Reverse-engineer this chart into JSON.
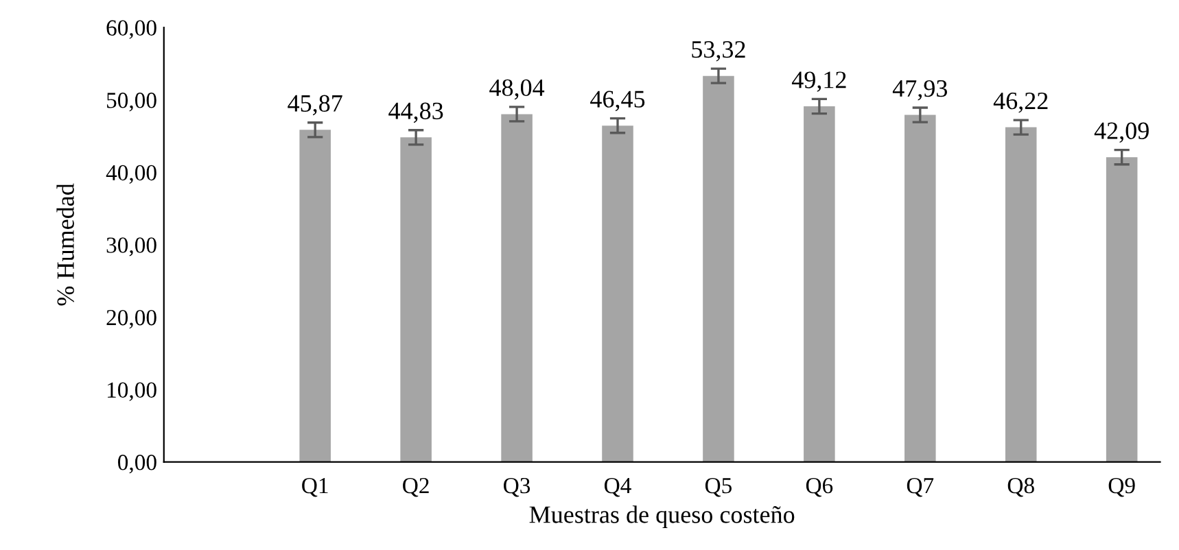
{
  "chart_data": {
    "type": "bar",
    "xlabel": "Muestras de queso costeño",
    "ylabel": "% Humedad",
    "categories": [
      null,
      "Q1",
      "Q2",
      "Q3",
      "Q4",
      "Q5",
      "Q6",
      "Q7",
      "Q8",
      "Q9"
    ],
    "values": [
      null,
      45.87,
      44.83,
      48.04,
      46.45,
      53.32,
      49.12,
      47.93,
      46.22,
      42.09
    ],
    "errors": [
      null,
      1.0,
      1.0,
      1.0,
      1.0,
      1.0,
      1.0,
      1.0,
      1.0,
      1.0
    ],
    "value_labels": [
      null,
      "45,87",
      "44,83",
      "48,04",
      "46,45",
      "53,32",
      "49,12",
      "47,93",
      "46,22",
      "42,09"
    ],
    "color": "#a5a5a5",
    "ylim": [
      0,
      60
    ],
    "yticks": [
      {
        "value": 0,
        "label": "0,00"
      },
      {
        "value": 10,
        "label": "10,00"
      },
      {
        "value": 20,
        "label": "20,00"
      },
      {
        "value": 30,
        "label": "30,00"
      },
      {
        "value": 40,
        "label": "40,00"
      },
      {
        "value": 50,
        "label": "50,00"
      },
      {
        "value": 60,
        "label": "60,00"
      }
    ],
    "grid": false,
    "legend": false
  }
}
